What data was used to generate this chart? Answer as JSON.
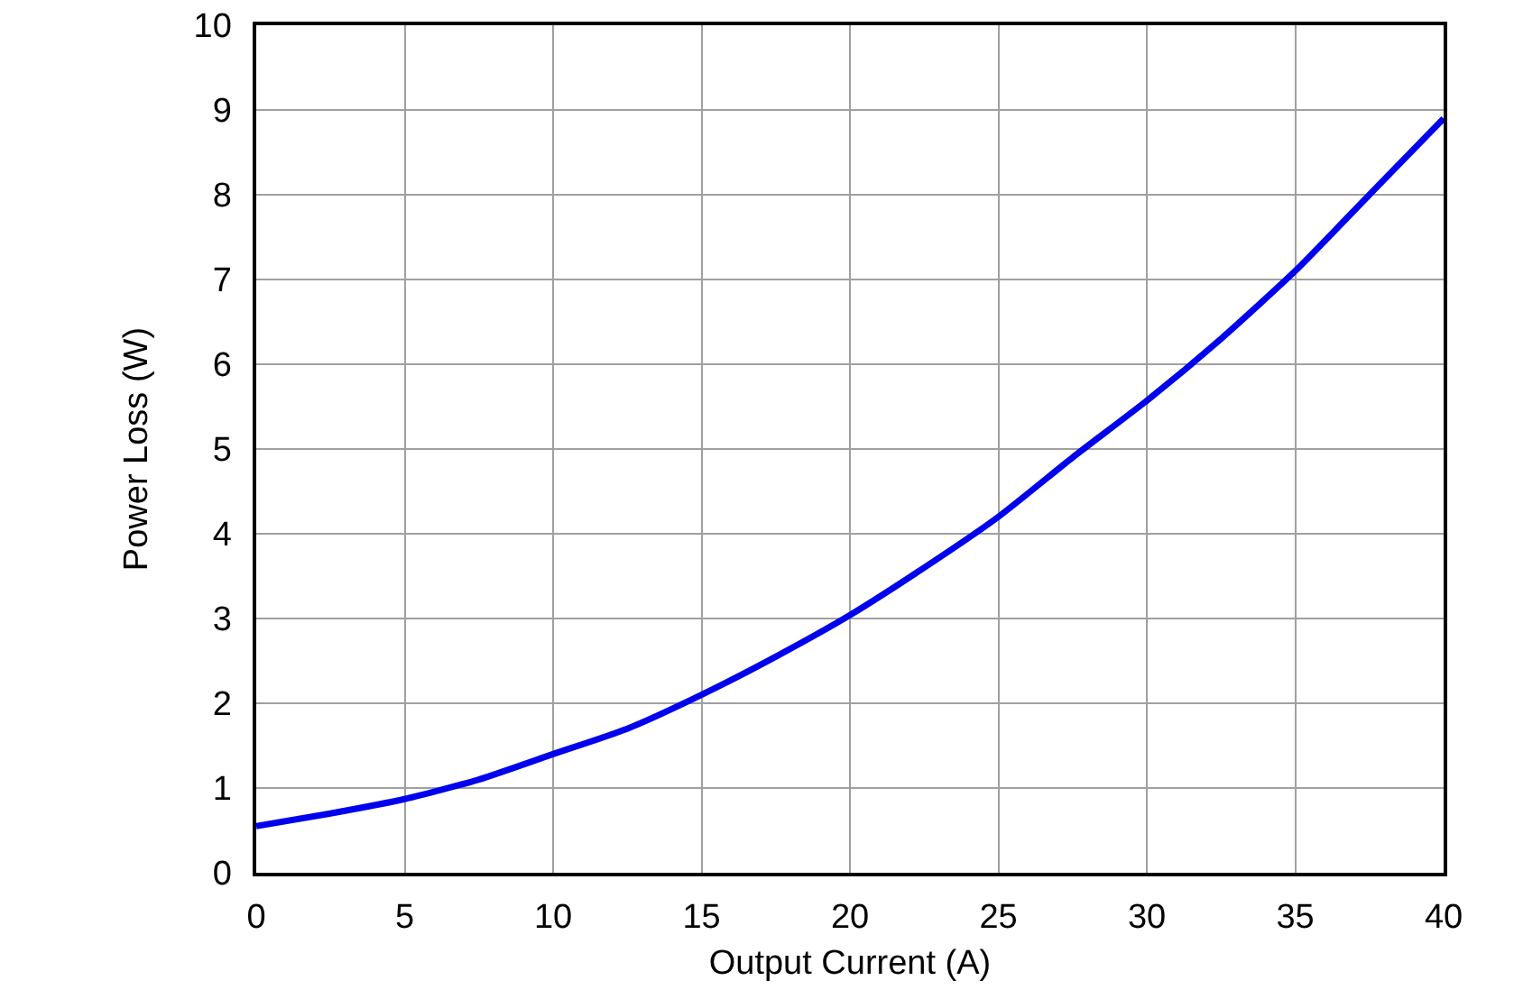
{
  "chart_data": {
    "type": "line",
    "xlabel": "Output Current (A)",
    "ylabel": "Power Loss (W)",
    "x": [
      0,
      2.5,
      5,
      7.5,
      10,
      12.5,
      15,
      17.5,
      20,
      22.5,
      25,
      27.5,
      30,
      32.5,
      35,
      37.5,
      40
    ],
    "series": [
      {
        "color": "#0000ee",
        "values": [
          0.55,
          0.7,
          0.87,
          1.1,
          1.4,
          1.7,
          2.1,
          2.55,
          3.04,
          3.6,
          4.2,
          4.9,
          5.57,
          6.3,
          7.1,
          8.0,
          8.9
        ]
      }
    ],
    "xlim": [
      0,
      40
    ],
    "xticks": [
      0,
      5,
      10,
      15,
      20,
      25,
      30,
      35,
      40
    ],
    "ylim": [
      0,
      10
    ],
    "yticks": [
      0,
      1,
      2,
      3,
      4,
      5,
      6,
      7,
      8,
      9,
      10
    ],
    "grid": true,
    "marker": "none",
    "line_style": "solid"
  }
}
